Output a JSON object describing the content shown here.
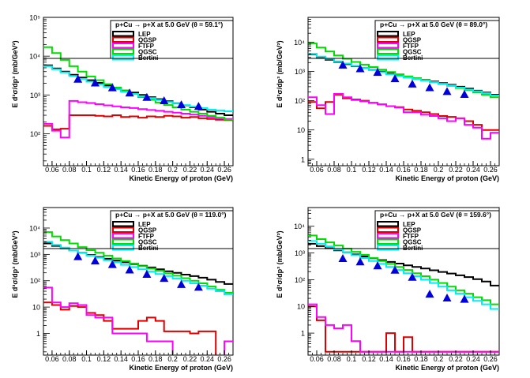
{
  "chart_data": [
    {
      "type": "line",
      "title": "p+Cu → p+X at 5.0 GeV (θ = 59.1°)",
      "xlabel": "Kinetic Energy of proton (GeV)",
      "ylabel": "E d³σ/dp³ (mb/GeV²)",
      "xlim": [
        0.05,
        0.27
      ],
      "ylim": [
        15,
        100000
      ],
      "yscale": "log",
      "x_ticks": [
        "0.06",
        "0.08",
        "0.1",
        "0.12",
        "0.14",
        "0.16",
        "0.18",
        "0.2",
        "0.22",
        "0.24",
        "0.26"
      ],
      "y_ticks": [
        {
          "value": 100,
          "label": "10²"
        },
        {
          "value": 1000,
          "label": "10³"
        },
        {
          "value": 10000,
          "label": "10⁴"
        },
        {
          "value": 100000,
          "label": "10⁵"
        }
      ],
      "legend": {
        "position": "top-right",
        "entries": [
          "LEP",
          "QGSP",
          "FTFP",
          "QGSC",
          "Bertini"
        ]
      },
      "bin_edges": [
        0.05,
        0.06,
        0.07,
        0.08,
        0.09,
        0.1,
        0.11,
        0.12,
        0.13,
        0.14,
        0.15,
        0.16,
        0.17,
        0.18,
        0.19,
        0.2,
        0.21,
        0.22,
        0.23,
        0.24,
        0.25,
        0.26,
        0.27
      ],
      "series": [
        {
          "name": "LEP",
          "color": "#000000",
          "values": [
            5800,
            4800,
            4000,
            3300,
            2800,
            2400,
            2050,
            1750,
            1500,
            1300,
            1150,
            1000,
            880,
            780,
            690,
            610,
            540,
            480,
            420,
            370,
            330,
            300
          ]
        },
        {
          "name": "QGSP",
          "color": "#dd0000",
          "values": [
            160,
            130,
            135,
            300,
            300,
            300,
            290,
            280,
            300,
            270,
            280,
            260,
            280,
            270,
            290,
            280,
            260,
            270,
            250,
            240,
            230,
            225
          ]
        },
        {
          "name": "FTFP",
          "color": "#ff00ff",
          "values": [
            180,
            120,
            80,
            700,
            650,
            620,
            580,
            540,
            510,
            480,
            460,
            430,
            410,
            390,
            370,
            350,
            330,
            310,
            290,
            270,
            250,
            240
          ]
        },
        {
          "name": "QGSC",
          "color": "#00dd00",
          "values": [
            17000,
            12000,
            8000,
            5500,
            4000,
            3000,
            2400,
            1900,
            1550,
            1280,
            1060,
            880,
            750,
            640,
            550,
            480,
            420,
            370,
            330,
            290,
            260,
            230
          ]
        },
        {
          "name": "Bertini",
          "color": "#00eeee",
          "values": [
            5500,
            4600,
            3800,
            3100,
            2600,
            2200,
            1850,
            1600,
            1400,
            1200,
            1060,
            930,
            830,
            740,
            660,
            600,
            550,
            500,
            460,
            420,
            400,
            380
          ]
        },
        {
          "name": "data",
          "marker": "triangle",
          "color": "#0000dd",
          "x": [
            0.09,
            0.11,
            0.13,
            0.15,
            0.17,
            0.19,
            0.21,
            0.23
          ],
          "values": [
            2500,
            2000,
            1500,
            1100,
            850,
            700,
            550,
            500
          ]
        }
      ]
    },
    {
      "type": "line",
      "title": "p+Cu → p+X at 5.0 GeV (θ = 89.0°)",
      "xlabel": "Kinetic Energy of proton (GeV)",
      "ylabel": "E d³σ/dp³ (mb/GeV²)",
      "xlim": [
        0.05,
        0.27
      ],
      "ylim": [
        0.6,
        70000
      ],
      "yscale": "log",
      "x_ticks": [
        "0.06",
        "0.08",
        "0.1",
        "0.12",
        "0.14",
        "0.16",
        "0.18",
        "0.2",
        "0.22",
        "0.24",
        "0.26"
      ],
      "y_ticks": [
        {
          "value": 1,
          "label": "1"
        },
        {
          "value": 10,
          "label": "10"
        },
        {
          "value": 100,
          "label": "10²"
        },
        {
          "value": 1000,
          "label": "10³"
        },
        {
          "value": 10000,
          "label": "10⁴"
        }
      ],
      "legend": {
        "position": "top-right",
        "entries": [
          "LEP",
          "QGSP",
          "FTFP",
          "QGSC",
          "Bertini"
        ]
      },
      "bin_edges": [
        0.05,
        0.06,
        0.07,
        0.08,
        0.09,
        0.1,
        0.11,
        0.12,
        0.13,
        0.14,
        0.15,
        0.16,
        0.17,
        0.18,
        0.19,
        0.2,
        0.21,
        0.22,
        0.23,
        0.24,
        0.25,
        0.26,
        0.27
      ],
      "series": [
        {
          "name": "LEP",
          "color": "#000000",
          "values": [
            3800,
            3000,
            2500,
            2100,
            1750,
            1500,
            1300,
            1120,
            980,
            850,
            750,
            660,
            580,
            510,
            450,
            400,
            350,
            300,
            260,
            220,
            190,
            160
          ]
        },
        {
          "name": "QGSP",
          "color": "#dd0000",
          "values": [
            90,
            55,
            90,
            160,
            120,
            110,
            100,
            85,
            75,
            65,
            60,
            50,
            45,
            40,
            35,
            30,
            28,
            25,
            20,
            15,
            10,
            10
          ]
        },
        {
          "name": "FTFP",
          "color": "#ff00ff",
          "values": [
            130,
            70,
            35,
            170,
            130,
            105,
            95,
            85,
            75,
            65,
            58,
            40,
            40,
            33,
            30,
            25,
            20,
            25,
            15,
            12,
            5,
            8
          ]
        },
        {
          "name": "QGSC",
          "color": "#00dd00",
          "values": [
            9000,
            6500,
            4800,
            3500,
            2700,
            2100,
            1700,
            1400,
            1150,
            950,
            800,
            680,
            580,
            500,
            430,
            370,
            320,
            270,
            230,
            190,
            160,
            130
          ]
        },
        {
          "name": "Bertini",
          "color": "#00eeee",
          "values": [
            4000,
            3200,
            2700,
            2200,
            1850,
            1550,
            1300,
            1100,
            940,
            800,
            700,
            620,
            550,
            490,
            430,
            380,
            330,
            280,
            240,
            210,
            180,
            150
          ]
        },
        {
          "name": "data",
          "marker": "triangle",
          "color": "#0000dd",
          "x": [
            0.09,
            0.11,
            0.13,
            0.15,
            0.17,
            0.19,
            0.21,
            0.23
          ],
          "values": [
            1600,
            1200,
            900,
            550,
            360,
            270,
            200,
            160
          ]
        }
      ]
    },
    {
      "type": "line",
      "title": "p+Cu → p+X at 5.0 GeV (θ = 119.0°)",
      "xlabel": "Kinetic Energy of proton (GeV)",
      "ylabel": "E d³σ/dp³ (mb/GeV²)",
      "xlim": [
        0.05,
        0.27
      ],
      "ylim": [
        0.15,
        60000
      ],
      "yscale": "log",
      "x_ticks": [
        "0.06",
        "0.08",
        "0.1",
        "0.12",
        "0.14",
        "0.16",
        "0.18",
        "0.2",
        "0.22",
        "0.24",
        "0.26"
      ],
      "y_ticks": [
        {
          "value": 1,
          "label": "1"
        },
        {
          "value": 10,
          "label": "10"
        },
        {
          "value": 100,
          "label": "10²"
        },
        {
          "value": 1000,
          "label": "10³"
        },
        {
          "value": 10000,
          "label": "10⁴"
        }
      ],
      "legend": {
        "position": "top-right",
        "entries": [
          "LEP",
          "QGSP",
          "FTFP",
          "QGSC",
          "Bertini"
        ]
      },
      "bin_edges": [
        0.05,
        0.06,
        0.07,
        0.08,
        0.09,
        0.1,
        0.11,
        0.12,
        0.13,
        0.14,
        0.15,
        0.16,
        0.17,
        0.18,
        0.19,
        0.2,
        0.21,
        0.22,
        0.23,
        0.24,
        0.25,
        0.26,
        0.27
      ],
      "series": [
        {
          "name": "LEP",
          "color": "#000000",
          "values": [
            2600,
            2100,
            1700,
            1400,
            1150,
            950,
            800,
            680,
            580,
            500,
            430,
            370,
            320,
            270,
            230,
            200,
            170,
            150,
            130,
            110,
            90,
            75
          ]
        },
        {
          "name": "QGSP",
          "color": "#dd0000",
          "values": [
            15,
            12,
            8,
            11,
            10,
            6,
            5,
            3,
            1.5,
            1.5,
            1.5,
            3,
            4,
            3,
            1.2,
            1.2,
            1.2,
            1.0,
            1.2,
            1.2,
            0,
            0
          ]
        },
        {
          "name": "FTFP",
          "color": "#ff00ff",
          "values": [
            55,
            15,
            10,
            14,
            12,
            5,
            4,
            4,
            1,
            1,
            1,
            1,
            0.5,
            0.5,
            0.5,
            0,
            0,
            0,
            0,
            0,
            0,
            0.5
          ]
        },
        {
          "name": "QGSC",
          "color": "#00dd00",
          "values": [
            7000,
            4800,
            3500,
            2600,
            1900,
            1450,
            1150,
            900,
            700,
            560,
            450,
            360,
            290,
            235,
            190,
            155,
            125,
            100,
            80,
            60,
            45,
            35
          ]
        },
        {
          "name": "Bertini",
          "color": "#00eeee",
          "values": [
            3000,
            2300,
            1800,
            1400,
            1150,
            900,
            750,
            600,
            500,
            400,
            330,
            270,
            220,
            180,
            150,
            120,
            100,
            80,
            65,
            50,
            40,
            30
          ]
        },
        {
          "name": "data",
          "marker": "triangle",
          "color": "#0000dd",
          "x": [
            0.09,
            0.11,
            0.13,
            0.15,
            0.17,
            0.19,
            0.21,
            0.23
          ],
          "values": [
            800,
            550,
            400,
            250,
            170,
            120,
            70,
            55
          ]
        }
      ]
    },
    {
      "type": "line",
      "title": "p+Cu → p+X at 5.0 GeV (θ = 159.6°)",
      "xlabel": "Kinetic Energy of proton (GeV)",
      "ylabel": "E d³σ/dp³ (mb/GeV²)",
      "xlim": [
        0.05,
        0.27
      ],
      "ylim": [
        0.15,
        50000
      ],
      "yscale": "log",
      "x_ticks": [
        "0.06",
        "0.08",
        "0.1",
        "0.12",
        "0.14",
        "0.16",
        "0.18",
        "0.2",
        "0.22",
        "0.24",
        "0.26"
      ],
      "y_ticks": [
        {
          "value": 1,
          "label": "1"
        },
        {
          "value": 10,
          "label": "10"
        },
        {
          "value": 100,
          "label": "10²"
        },
        {
          "value": 1000,
          "label": "10³"
        },
        {
          "value": 10000,
          "label": "10⁴"
        }
      ],
      "legend": {
        "position": "top-right",
        "entries": [
          "LEP",
          "QGSP",
          "FTFP",
          "QGSC",
          "Bertini"
        ]
      },
      "bin_edges": [
        0.05,
        0.06,
        0.07,
        0.08,
        0.09,
        0.1,
        0.11,
        0.12,
        0.13,
        0.14,
        0.15,
        0.16,
        0.17,
        0.18,
        0.19,
        0.2,
        0.21,
        0.22,
        0.23,
        0.24,
        0.25,
        0.26,
        0.27
      ],
      "series": [
        {
          "name": "LEP",
          "color": "#000000",
          "values": [
            2200,
            1800,
            1500,
            1250,
            1050,
            880,
            740,
            630,
            540,
            460,
            400,
            345,
            300,
            260,
            225,
            195,
            170,
            145,
            125,
            105,
            85,
            60
          ]
        },
        {
          "name": "QGSP",
          "color": "#dd0000",
          "values": [
            10,
            3,
            0.2,
            0.2,
            0.2,
            0.2,
            0.2,
            0.2,
            0.2,
            1.0,
            0.2,
            0.7,
            0.2,
            0.2,
            0.2,
            0.2,
            0.2,
            0.2,
            0.2,
            0.2,
            0.2,
            0.2
          ]
        },
        {
          "name": "FTFP",
          "color": "#ff00ff",
          "values": [
            12,
            4,
            2,
            1.5,
            2,
            0.5,
            0.2,
            0.2,
            0.2,
            0.2,
            0.2,
            0.2,
            0.2,
            0.2,
            0.2,
            0.2,
            0.2,
            0.2,
            0.2,
            0.2,
            0.2,
            0.2
          ]
        },
        {
          "name": "QGSC",
          "color": "#00dd00",
          "values": [
            4500,
            3300,
            2500,
            1900,
            1450,
            1100,
            850,
            650,
            500,
            390,
            300,
            230,
            175,
            135,
            100,
            75,
            55,
            40,
            30,
            22,
            17,
            12
          ]
        },
        {
          "name": "Bertini",
          "color": "#00eeee",
          "values": [
            2800,
            2200,
            1750,
            1350,
            1050,
            820,
            640,
            500,
            390,
            300,
            230,
            175,
            135,
            100,
            75,
            55,
            40,
            30,
            22,
            16,
            12,
            8
          ]
        },
        {
          "name": "data",
          "marker": "triangle",
          "color": "#0000dd",
          "x": [
            0.09,
            0.11,
            0.13,
            0.15,
            0.17,
            0.19,
            0.21,
            0.23
          ],
          "values": [
            600,
            450,
            320,
            220,
            120,
            28,
            20,
            18
          ]
        }
      ]
    }
  ]
}
